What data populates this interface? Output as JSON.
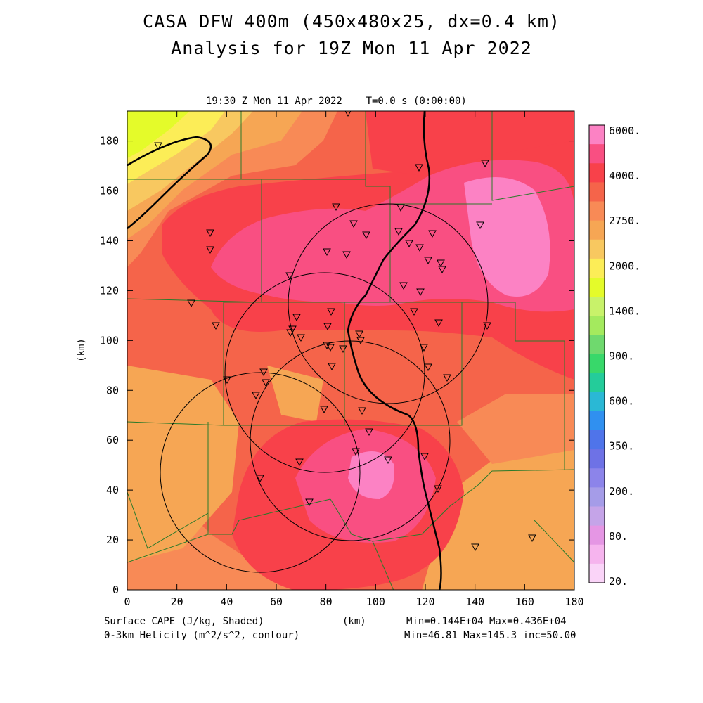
{
  "title_line1": "CASA DFW 400m (450x480x25, dx=0.4 km)",
  "title_line2": "Analysis for 19Z Mon 11 Apr 2022",
  "subtitle": "19:30 Z Mon 11 Apr 2022    T=0.0 s (0:00:00)",
  "x_axis_label": "(km)",
  "y_axis_label": "(km)",
  "x_ticks": [
    "0",
    "20",
    "40",
    "60",
    "80",
    "100",
    "120",
    "140",
    "160",
    "180"
  ],
  "y_ticks": [
    "0",
    "20",
    "40",
    "60",
    "80",
    "100",
    "120",
    "140",
    "160",
    "180"
  ],
  "footer": {
    "shaded_label": "Surface CAPE (J/kg, Shaded)",
    "contour_label": "0-3km Helicity (m^2/s^2, contour)",
    "km_label": "(km)",
    "shaded_stats": "Min=0.144E+04 Max=0.436E+04",
    "contour_stats": "Min=46.81 Max=145.3 inc=50.00"
  },
  "colorbar": {
    "labels": [
      "6000.",
      "4000.",
      "2750.",
      "2000.",
      "1400.",
      "900.",
      "600.",
      "350.",
      "200.",
      "80.",
      "20."
    ],
    "colors": [
      "#fc82c4",
      "#f94f82",
      "#f8414a",
      "#f5644a",
      "#f88a56",
      "#f6a654",
      "#f8c860",
      "#fced57",
      "#e4fb2a",
      "#c8f26a",
      "#a4ea5e",
      "#6fd96e",
      "#38d86a",
      "#24cc9a",
      "#2ab8d5",
      "#3090f0",
      "#4f74ea",
      "#6e72e6",
      "#8c84ea",
      "#a59ce8",
      "#c5a4e8",
      "#e596e4",
      "#f6b4ee",
      "#fad4f8"
    ]
  },
  "legend_extent_km": [
    0,
    180,
    0,
    192
  ]
}
